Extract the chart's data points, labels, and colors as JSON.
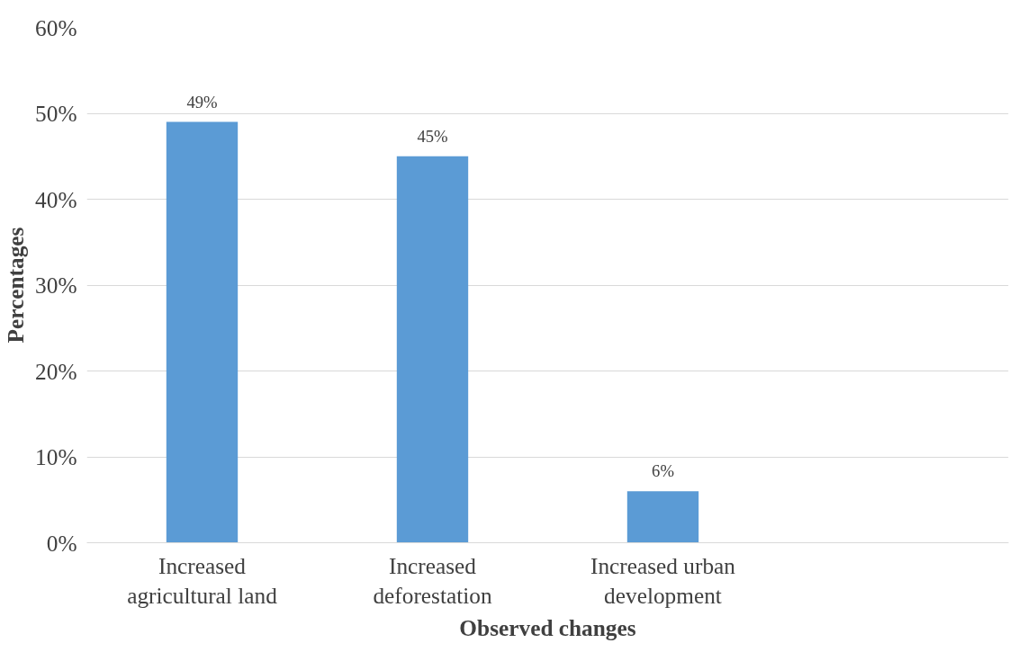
{
  "chart_data": {
    "type": "bar",
    "xlabel": "Observed changes",
    "ylabel": "Percentages",
    "categories": [
      "Increased agricultural land",
      "Increased deforestation",
      "Increased urban development",
      null
    ],
    "values": [
      49,
      45,
      6,
      null
    ],
    "color": "#5b9bd5",
    "value_labels": [
      "49%",
      "45%",
      "6%",
      null
    ],
    "ylim": [
      0,
      60
    ],
    "yticks": [
      {
        "value": 0,
        "label": "0%"
      },
      {
        "value": 10,
        "label": "10%"
      },
      {
        "value": 20,
        "label": "20%"
      },
      {
        "value": 30,
        "label": "30%"
      },
      {
        "value": 40,
        "label": "40%"
      },
      {
        "value": 50,
        "label": "50%"
      },
      {
        "value": 60,
        "label": "60%"
      }
    ],
    "grid": "y"
  }
}
